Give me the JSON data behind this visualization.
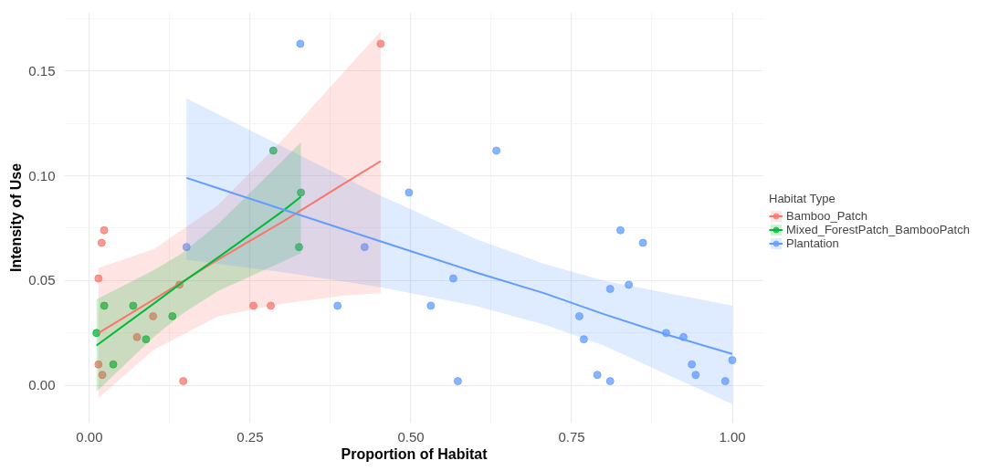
{
  "chart_data": {
    "type": "scatter",
    "xlabel": "Proportion of Habitat",
    "ylabel": "Intensity of Use",
    "legend_title": "Habitat Type",
    "xlim": [
      -0.039,
      1.049
    ],
    "ylim": [
      -0.018,
      0.178
    ],
    "xticks": [
      {
        "value": 0,
        "label": "0.00"
      },
      0.25,
      {
        "value": 0.5,
        "label": "0.50"
      },
      0.75,
      {
        "value": 1,
        "label": "1.00"
      }
    ],
    "yticks": [
      {
        "value": 0,
        "label": "0.00"
      },
      0.05,
      {
        "value": 0.1,
        "label": "0.10"
      },
      0.15
    ],
    "grid": true,
    "legend": "right",
    "line_style": "solid",
    "series": [
      {
        "name": "Bamboo_Patch",
        "color": "#f8766d",
        "marker": "circle",
        "x": [
          0.014,
          0.019,
          0.023,
          0.014,
          0.02,
          0.074,
          0.099,
          0.14,
          0.146,
          0.255,
          0.282,
          0.453
        ],
        "values": [
          0.051,
          0.068,
          0.074,
          0.01,
          0.005,
          0.023,
          0.033,
          0.048,
          0.002,
          0.038,
          0.038,
          0.163
        ]
      },
      {
        "name": "Mixed_ForestPatch_BambooPatch",
        "color": "#00ba38",
        "marker": "circle",
        "x": [
          0.011,
          0.023,
          0.037,
          0.068,
          0.088,
          0.129,
          0.286,
          0.329,
          0.326
        ],
        "values": [
          0.025,
          0.038,
          0.01,
          0.038,
          0.022,
          0.033,
          0.112,
          0.092,
          0.066
        ]
      },
      {
        "name": "Plantation",
        "color": "#619cff",
        "marker": "circle",
        "x": [
          0.151,
          0.328,
          0.386,
          0.428,
          0.497,
          0.531,
          0.566,
          0.573,
          0.633,
          0.762,
          0.769,
          0.79,
          0.81,
          0.81,
          0.826,
          0.839,
          0.861,
          0.897,
          0.924,
          0.937,
          0.943,
          0.989,
          1.0
        ],
        "values": [
          0.066,
          0.163,
          0.038,
          0.066,
          0.092,
          0.038,
          0.051,
          0.002,
          0.112,
          0.033,
          0.022,
          0.005,
          0.002,
          0.046,
          0.074,
          0.048,
          0.068,
          0.025,
          0.023,
          0.01,
          0.005,
          0.002,
          0.012
        ]
      },
      {
        "type": "line",
        "color": "#f8766d",
        "x": [
          0.014,
          0.1,
          0.2,
          0.3,
          0.4,
          0.453
        ],
        "values": [
          0.025,
          0.041,
          0.06,
          0.078,
          0.097,
          0.107
        ],
        "lower": [
          -0.006,
          0.017,
          0.033,
          0.039,
          0.043,
          0.044
        ],
        "upper": [
          0.056,
          0.065,
          0.086,
          0.117,
          0.151,
          0.169
        ]
      },
      {
        "type": "line",
        "color": "#00ba38",
        "x": [
          0.011,
          0.1,
          0.144,
          0.2,
          0.3,
          0.329
        ],
        "values": [
          0.019,
          0.039,
          0.049,
          0.061,
          0.083,
          0.09
        ],
        "lower": [
          -0.003,
          0.023,
          0.034,
          0.045,
          0.059,
          0.063
        ],
        "upper": [
          0.041,
          0.055,
          0.063,
          0.077,
          0.107,
          0.116
        ]
      },
      {
        "type": "line",
        "color": "#619cff",
        "x": [
          0.151,
          0.3,
          0.45,
          0.6,
          0.707,
          0.8,
          0.9,
          1.0
        ],
        "values": [
          0.099,
          0.084,
          0.069,
          0.054,
          0.044,
          0.034,
          0.024,
          0.015
        ],
        "lower": [
          0.06,
          0.054,
          0.047,
          0.038,
          0.029,
          0.019,
          0.005,
          -0.009
        ],
        "upper": [
          0.137,
          0.114,
          0.091,
          0.07,
          0.058,
          0.05,
          0.044,
          0.038
        ]
      }
    ]
  }
}
